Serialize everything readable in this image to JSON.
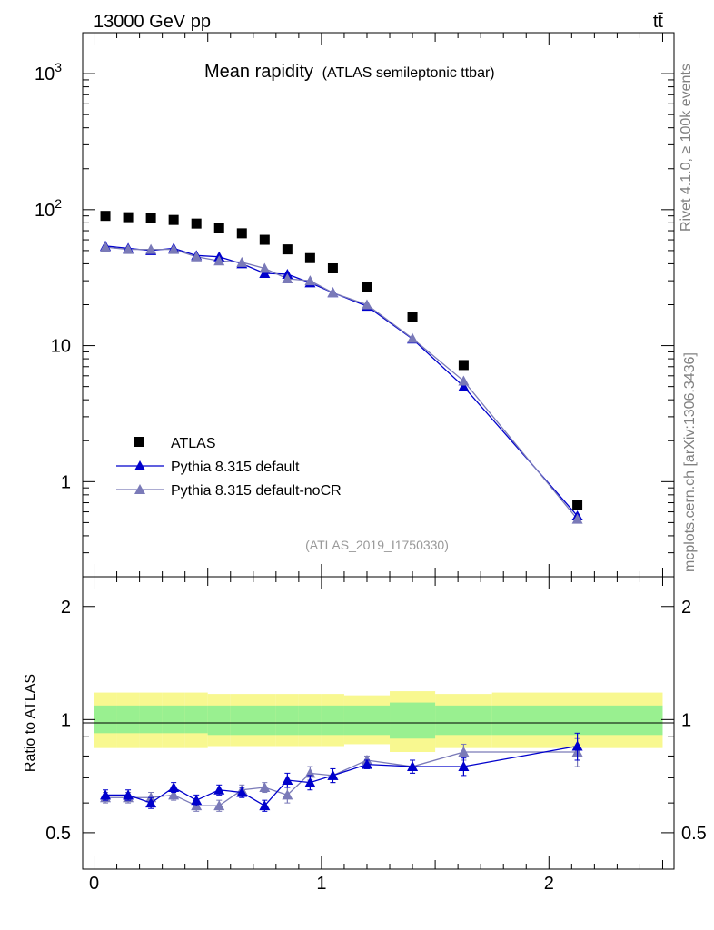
{
  "header": {
    "energy_label": "13000 GeV pp",
    "process_label": "tt̄"
  },
  "side_labels": {
    "rivet": "Rivet 4.1.0, ≥ 100k events",
    "site": "mcplots.cern.ch [arXiv:1306.3436]"
  },
  "chart_data": {
    "type": "scatter",
    "title": "Mean rapidity",
    "subtitle": "(ATLAS semileptonic ttbar)",
    "analysis_id": "(ATLAS_2019_I1750330)",
    "xlim": [
      -0.05,
      2.55
    ],
    "ylim": [
      0.2,
      2000
    ],
    "yscale": "log",
    "x_ticks": [
      {
        "value": 0,
        "label": "0"
      },
      {
        "value": 1,
        "label": "1"
      },
      {
        "value": 2,
        "label": "2"
      }
    ],
    "y_ticks": [
      {
        "value": 1,
        "label": "1"
      },
      {
        "value": 10,
        "label": "10"
      },
      {
        "value": 100,
        "label": "10",
        "sup": "2"
      },
      {
        "value": 1000,
        "label": "10",
        "sup": "3"
      }
    ],
    "x": [
      0.05,
      0.15,
      0.25,
      0.35,
      0.45,
      0.55,
      0.65,
      0.75,
      0.85,
      0.95,
      1.05,
      1.2,
      1.4,
      1.625,
      2.125
    ],
    "bin_edges": [
      0.0,
      0.1,
      0.2,
      0.3,
      0.4,
      0.5,
      0.6,
      0.7,
      0.8,
      0.9,
      1.0,
      1.1,
      1.3,
      1.5,
      1.75,
      2.5
    ],
    "series": [
      {
        "name": "ATLAS",
        "color": "#000000",
        "marker": "square",
        "values": [
          90,
          88,
          87,
          84,
          79,
          73,
          67,
          60,
          51,
          44,
          37,
          27,
          16.2,
          7.2,
          0.67
        ]
      },
      {
        "name": "Pythia 8.315 default",
        "color": "#0000cc",
        "marker": "triangle",
        "values": [
          54,
          52,
          50,
          52,
          46,
          45,
          40,
          34,
          33.5,
          29,
          24.5,
          19.5,
          11.2,
          5.0,
          0.56
        ],
        "ratio": [
          0.63,
          0.63,
          0.6,
          0.66,
          0.61,
          0.65,
          0.64,
          0.59,
          0.69,
          0.68,
          0.71,
          0.76,
          0.75,
          0.75,
          0.85
        ],
        "ratio_err": [
          0.02,
          0.02,
          0.02,
          0.02,
          0.02,
          0.02,
          0.02,
          0.02,
          0.03,
          0.03,
          0.03,
          0.02,
          0.03,
          0.04,
          0.07
        ]
      },
      {
        "name": "Pythia 8.315 default-noCR",
        "color": "#7a7ab8",
        "marker": "triangle",
        "values": [
          53,
          51,
          51,
          51,
          45,
          42,
          41,
          37,
          31,
          30,
          24.5,
          20,
          11.3,
          5.5,
          0.53
        ],
        "ratio": [
          0.62,
          0.62,
          0.62,
          0.63,
          0.59,
          0.59,
          0.65,
          0.66,
          0.63,
          0.72,
          0.71,
          0.78,
          0.75,
          0.82,
          0.82
        ],
        "ratio_err": [
          0.02,
          0.02,
          0.02,
          0.02,
          0.02,
          0.02,
          0.02,
          0.02,
          0.03,
          0.03,
          0.03,
          0.02,
          0.03,
          0.04,
          0.07
        ]
      }
    ],
    "ratio_panel": {
      "ylabel": "Ratio to ATLAS",
      "ylim": [
        0.4,
        2.4
      ],
      "yscale": "log",
      "y_ticks": [
        {
          "value": 0.5,
          "label": "0.5"
        },
        {
          "value": 1,
          "label": "1"
        },
        {
          "value": 2,
          "label": "2"
        }
      ],
      "band_colors": {
        "inner": "#99f090",
        "outer": "#f8f890"
      },
      "inner_band": [
        [
          0.92,
          1.09
        ],
        [
          0.92,
          1.09
        ],
        [
          0.92,
          1.09
        ],
        [
          0.92,
          1.09
        ],
        [
          0.92,
          1.09
        ],
        [
          0.91,
          1.09
        ],
        [
          0.91,
          1.09
        ],
        [
          0.91,
          1.09
        ],
        [
          0.91,
          1.09
        ],
        [
          0.91,
          1.09
        ],
        [
          0.91,
          1.09
        ],
        [
          0.91,
          1.09
        ],
        [
          0.89,
          1.11
        ],
        [
          0.91,
          1.09
        ],
        [
          0.91,
          1.09
        ]
      ],
      "outer_band": [
        [
          0.84,
          1.18
        ],
        [
          0.84,
          1.18
        ],
        [
          0.84,
          1.18
        ],
        [
          0.84,
          1.18
        ],
        [
          0.84,
          1.18
        ],
        [
          0.85,
          1.17
        ],
        [
          0.85,
          1.17
        ],
        [
          0.85,
          1.17
        ],
        [
          0.85,
          1.17
        ],
        [
          0.85,
          1.17
        ],
        [
          0.85,
          1.17
        ],
        [
          0.86,
          1.16
        ],
        [
          0.82,
          1.19
        ],
        [
          0.84,
          1.17
        ],
        [
          0.84,
          1.18
        ]
      ]
    }
  }
}
